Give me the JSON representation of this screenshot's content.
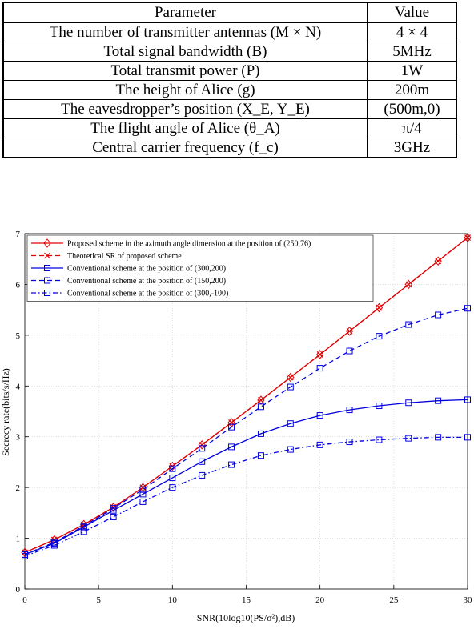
{
  "table": {
    "headers": [
      "Parameter",
      "Value"
    ],
    "rows": [
      [
        "The number of transmitter antennas (M × N)",
        "4 × 4"
      ],
      [
        "Total signal bandwidth (B)",
        "5MHz"
      ],
      [
        "Total transmit power (P)",
        "1W"
      ],
      [
        "The height of Alice (g)",
        "200m"
      ],
      [
        "The eavesdropper’s position (X_E, Y_E)",
        "(500m,0)"
      ],
      [
        "The flight angle of Alice (θ_A)",
        "π/4"
      ],
      [
        "Central carrier frequency (f_c)",
        "3GHz"
      ]
    ]
  },
  "chart_data": {
    "type": "line",
    "xlabel": "SNR(10log10(PS/σ²),dB)",
    "ylabel": "Secrecy rate(bits/s/Hz)",
    "xlim": [
      0,
      30
    ],
    "ylim": [
      0,
      7
    ],
    "xticks": [
      0,
      5,
      10,
      15,
      20,
      25,
      30
    ],
    "yticks": [
      0,
      1,
      2,
      3,
      4,
      5,
      6,
      7
    ],
    "grid": true,
    "legend_position": "top-left",
    "x": [
      0,
      2,
      4,
      6,
      8,
      10,
      12,
      14,
      16,
      18,
      20,
      22,
      24,
      26,
      28,
      30
    ],
    "series": [
      {
        "name": "Proposed scheme in the azimuth angle dimension at the position of (250,76)",
        "color": "#e00000",
        "dash": "solid",
        "marker": "diamond",
        "values": [
          0.72,
          0.97,
          1.27,
          1.61,
          2.0,
          2.42,
          2.84,
          3.28,
          3.72,
          4.17,
          4.62,
          5.08,
          5.54,
          6.0,
          6.46,
          6.92
        ]
      },
      {
        "name": "Theoretical SR of proposed scheme",
        "color": "#e00000",
        "dash": "dashed",
        "marker": "x",
        "values": [
          0.72,
          0.97,
          1.27,
          1.61,
          2.0,
          2.42,
          2.84,
          3.28,
          3.72,
          4.17,
          4.62,
          5.08,
          5.54,
          6.0,
          6.46,
          6.92
        ]
      },
      {
        "name": "Conventional scheme at the position of (300,200)",
        "color": "#0000dd",
        "dash": "solid",
        "marker": "square",
        "values": [
          0.68,
          0.9,
          1.22,
          1.55,
          1.87,
          2.19,
          2.51,
          2.8,
          3.06,
          3.26,
          3.42,
          3.53,
          3.61,
          3.67,
          3.71,
          3.73
        ]
      },
      {
        "name": "Conventional scheme at the position of (150,200)",
        "color": "#0000dd",
        "dash": "dashed",
        "marker": "square",
        "values": [
          0.68,
          0.92,
          1.24,
          1.59,
          1.96,
          2.37,
          2.77,
          3.19,
          3.59,
          3.98,
          4.35,
          4.69,
          4.98,
          5.21,
          5.4,
          5.53
        ]
      },
      {
        "name": "Conventional scheme at the position of (300,-100)",
        "color": "#0000dd",
        "dash": "dashdot",
        "marker": "square",
        "values": [
          0.65,
          0.86,
          1.13,
          1.42,
          1.72,
          2.0,
          2.24,
          2.45,
          2.63,
          2.75,
          2.84,
          2.9,
          2.94,
          2.97,
          2.99,
          2.99
        ]
      }
    ]
  }
}
